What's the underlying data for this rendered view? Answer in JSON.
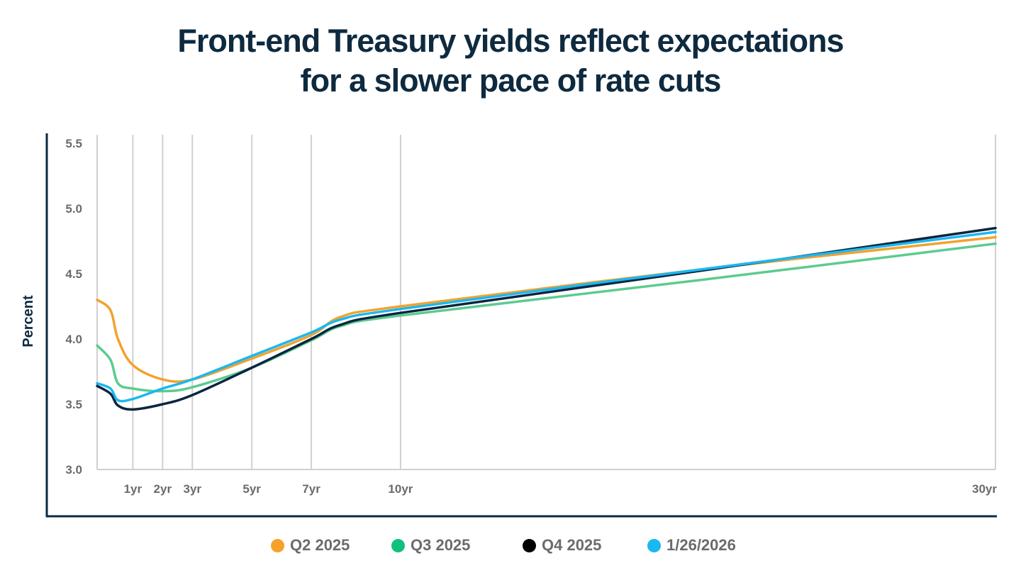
{
  "chart_data": {
    "type": "line",
    "title": [
      "Front-end Treasury yields reflect expectations",
      "for a slower pace of rate cuts"
    ],
    "ylabel": "Percent",
    "xlabel": "",
    "ylim": [
      3.0,
      5.5
    ],
    "yticks": [
      3.0,
      3.5,
      4.0,
      4.5,
      5.0,
      5.5
    ],
    "ytick_labels": [
      "3.0",
      "3.5",
      "4.0",
      "4.5",
      "5.0",
      "5.5"
    ],
    "xlim": [
      -0.2,
      30
    ],
    "xticks": [
      1,
      2,
      3,
      5,
      7,
      10,
      30
    ],
    "xtick_labels": [
      "1yr",
      "2yr",
      "3yr",
      "5yr",
      "7yr",
      "10yr",
      "30yr"
    ],
    "grid": "vertical lines at x ticks",
    "legend_position": "bottom",
    "x": [
      -0.2,
      0.25,
      0.5,
      1,
      2,
      3,
      5,
      7,
      8,
      10,
      20,
      30
    ],
    "series": [
      {
        "name": "Q2 2025",
        "color": "#f2a22f",
        "legend_color": "#f7a12a",
        "values": [
          4.3,
          4.22,
          4.0,
          3.8,
          3.69,
          3.69,
          3.85,
          4.03,
          4.17,
          4.25,
          4.53,
          4.78
        ]
      },
      {
        "name": "Q3 2025",
        "color": "#5ccb8f",
        "legend_color": "#10c07c",
        "values": [
          3.95,
          3.84,
          3.66,
          3.62,
          3.6,
          3.63,
          3.78,
          3.99,
          4.1,
          4.18,
          4.45,
          4.73
        ]
      },
      {
        "name": "Q4 2025",
        "color": "#0a2540",
        "legend_color": "#000000",
        "values": [
          3.64,
          3.58,
          3.49,
          3.46,
          3.5,
          3.57,
          3.78,
          4.0,
          4.11,
          4.2,
          4.52,
          4.85
        ]
      },
      {
        "name": "1/26/2026",
        "color": "#1ab8f0",
        "legend_color": "#1ab8f0",
        "values": [
          3.66,
          3.62,
          3.53,
          3.54,
          3.62,
          3.69,
          3.87,
          4.05,
          4.15,
          4.23,
          4.53,
          4.82
        ]
      }
    ]
  }
}
